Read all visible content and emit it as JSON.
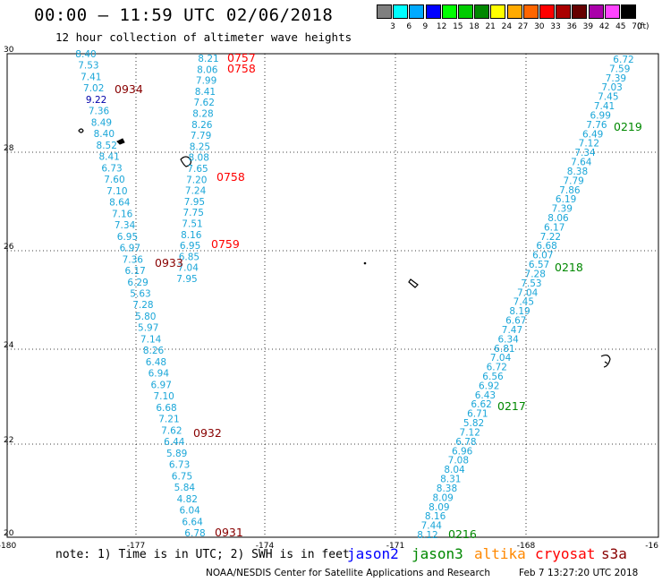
{
  "header": {
    "title": "00:00 – 11:59 UTC 02/06/2018",
    "subtitle": "12 hour collection of altimeter wave heights"
  },
  "legend": {
    "unit": "(ft)",
    "items": [
      {
        "label": "3",
        "color": "#7f7f7f"
      },
      {
        "label": "6",
        "color": "#00ffff"
      },
      {
        "label": "9",
        "color": "#00aaff"
      },
      {
        "label": "12",
        "color": "#0000ff"
      },
      {
        "label": "15",
        "color": "#00ff00"
      },
      {
        "label": "18",
        "color": "#00cc00"
      },
      {
        "label": "21",
        "color": "#008800"
      },
      {
        "label": "24",
        "color": "#ffff00"
      },
      {
        "label": "27",
        "color": "#ffaa00"
      },
      {
        "label": "30",
        "color": "#ff6600"
      },
      {
        "label": "33",
        "color": "#ff0000"
      },
      {
        "label": "36",
        "color": "#aa0000"
      },
      {
        "label": "39",
        "color": "#660000"
      },
      {
        "label": "42",
        "color": "#aa00aa"
      },
      {
        "label": "45",
        "color": "#ff44ff"
      },
      {
        "label": "70",
        "color": "#000000"
      }
    ]
  },
  "axes": {
    "lon_labels": [
      "-180",
      "-177",
      "-174",
      "-171",
      "-168",
      "-16"
    ],
    "lat_labels": [
      "30",
      "28",
      "26",
      "24",
      "22",
      "20"
    ]
  },
  "colors": {
    "wave": "#1aa6d8",
    "dark_blue": "#0000aa",
    "t_red": "#ff0000",
    "t_maroon": "#880000",
    "t_green": "#008800"
  },
  "track_a": [
    "8.40",
    "7.53",
    "7.41",
    "7.02",
    "9.22",
    "7.36",
    "8.49",
    "8.40",
    "8.52",
    "8.41",
    "6.73",
    "7.60",
    "7.10",
    "8.64",
    "7.16",
    "7.34",
    "6.95",
    "6.97",
    "7.36",
    "6.17",
    "6.29",
    "5.63",
    "7.28",
    "5.80",
    "5.97",
    "7.14",
    "8.26",
    "6.48",
    "6.94",
    "6.97",
    "7.10",
    "6.68",
    "7.21",
    "7.62",
    "6.44",
    "5.89",
    "6.73",
    "6.75",
    "5.84",
    "4.82",
    "6.04",
    "6.64",
    "6.78"
  ],
  "track_b": [
    "8.21",
    "8.06",
    "7.99",
    "8.41",
    "7.62",
    "8.28",
    "8.26",
    "7.79",
    "8.25",
    "8.08",
    "7.65",
    "7.20",
    "7.24",
    "7.95",
    "7.75",
    "7.51",
    "8.16",
    "6.95",
    "6.85",
    "7.04",
    "7.95"
  ],
  "track_c": [
    "6.72",
    "7.59",
    "7.39",
    "7.03",
    "7.45",
    "7.41",
    "6.99",
    "7.76",
    "6.49",
    "7.12",
    "7.34",
    "7.64",
    "8.38",
    "7.79",
    "7.86",
    "6.19",
    "7.39",
    "8.06",
    "6.17",
    "7.22",
    "6.68",
    "6.07",
    "6.57",
    "7.28",
    "7.53",
    "7.04",
    "7.45",
    "8.19",
    "6.67",
    "7.47",
    "6.34",
    "6.81",
    "7.04",
    "6.72",
    "6.56",
    "6.92",
    "6.43",
    "6.62",
    "6.71",
    "5.82",
    "7.12",
    "6.78",
    "6.96",
    "7.08",
    "8.04",
    "8.31",
    "8.38",
    "8.09",
    "8.09",
    "8.16",
    "7.44",
    "8.12"
  ],
  "times": [
    {
      "text": "0757",
      "kind": "red"
    },
    {
      "text": "0758",
      "kind": "red"
    },
    {
      "text": "0934",
      "kind": "maroon"
    },
    {
      "text": "0758",
      "kind": "red"
    },
    {
      "text": "0759",
      "kind": "red"
    },
    {
      "text": "0933",
      "kind": "maroon"
    },
    {
      "text": "0932",
      "kind": "maroon"
    },
    {
      "text": "0931",
      "kind": "maroon"
    },
    {
      "text": "0219",
      "kind": "green"
    },
    {
      "text": "0218",
      "kind": "green"
    },
    {
      "text": "0217",
      "kind": "green"
    },
    {
      "text": "0216",
      "kind": "green"
    }
  ],
  "footer": {
    "note": "note: 1) Time is in UTC; 2) SWH is in feet",
    "sats": [
      {
        "name": "jason2",
        "color": "#0000ff"
      },
      {
        "name": "jason3",
        "color": "#008800"
      },
      {
        "name": "altika",
        "color": "#ff8800"
      },
      {
        "name": "cryosat",
        "color": "#ff0000"
      },
      {
        "name": "s3a",
        "color": "#880000"
      }
    ],
    "credit": "NOAA/NESDIS Center for Satellite Applications and Research",
    "timestamp": "Feb  7 13:27:20 UTC 2018"
  }
}
